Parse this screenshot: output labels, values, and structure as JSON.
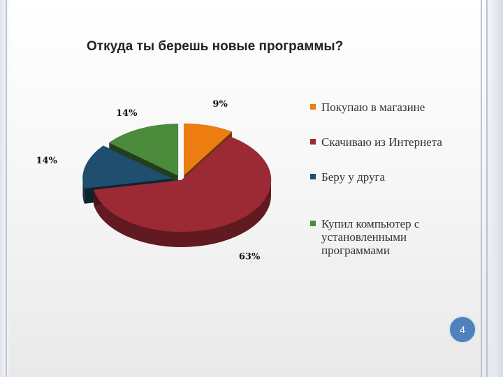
{
  "slide": {
    "page_number": "4"
  },
  "chart_data": {
    "type": "pie",
    "title": "Откуда ты берешь новые программы?",
    "categories": [
      "Покупаю в магазине",
      "Скачиваю из Интернета",
      "Беру у друга",
      "Купил компьютер с установленными программами"
    ],
    "values": [
      9,
      63,
      14,
      14
    ],
    "labels": [
      "9%",
      "63%",
      "14%",
      "14%"
    ],
    "colors": [
      "#ee7d11",
      "#9b2a34",
      "#1f4e6e",
      "#4c8a3c"
    ],
    "legend_position": "right",
    "style": "3d-exploded"
  }
}
